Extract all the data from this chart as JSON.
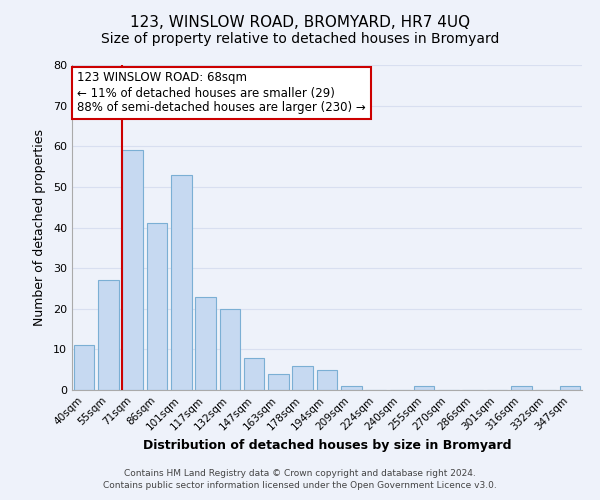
{
  "title": "123, WINSLOW ROAD, BROMYARD, HR7 4UQ",
  "subtitle": "Size of property relative to detached houses in Bromyard",
  "xlabel": "Distribution of detached houses by size in Bromyard",
  "ylabel": "Number of detached properties",
  "bar_labels": [
    "40sqm",
    "55sqm",
    "71sqm",
    "86sqm",
    "101sqm",
    "117sqm",
    "132sqm",
    "147sqm",
    "163sqm",
    "178sqm",
    "194sqm",
    "209sqm",
    "224sqm",
    "240sqm",
    "255sqm",
    "270sqm",
    "286sqm",
    "301sqm",
    "316sqm",
    "332sqm",
    "347sqm"
  ],
  "bar_values": [
    11,
    27,
    59,
    41,
    53,
    23,
    20,
    8,
    4,
    6,
    5,
    1,
    0,
    0,
    1,
    0,
    0,
    0,
    1,
    0,
    1
  ],
  "bar_color": "#c6d9f1",
  "bar_edge_color": "#7bafd4",
  "property_line_index": 2,
  "property_line_color": "#cc0000",
  "ylim": [
    0,
    80
  ],
  "yticks": [
    0,
    10,
    20,
    30,
    40,
    50,
    60,
    70,
    80
  ],
  "annotation_line1": "123 WINSLOW ROAD: 68sqm",
  "annotation_line2": "← 11% of detached houses are smaller (29)",
  "annotation_line3": "88% of semi-detached houses are larger (230) →",
  "annotation_box_color": "#ffffff",
  "annotation_box_edge_color": "#cc0000",
  "footer_line1": "Contains HM Land Registry data © Crown copyright and database right 2024.",
  "footer_line2": "Contains public sector information licensed under the Open Government Licence v3.0.",
  "background_color": "#eef2fa",
  "grid_color": "#d8dff0",
  "title_fontsize": 11,
  "subtitle_fontsize": 10,
  "axis_label_fontsize": 9,
  "tick_fontsize": 7.5,
  "annotation_fontsize": 8.5,
  "footer_fontsize": 6.5
}
